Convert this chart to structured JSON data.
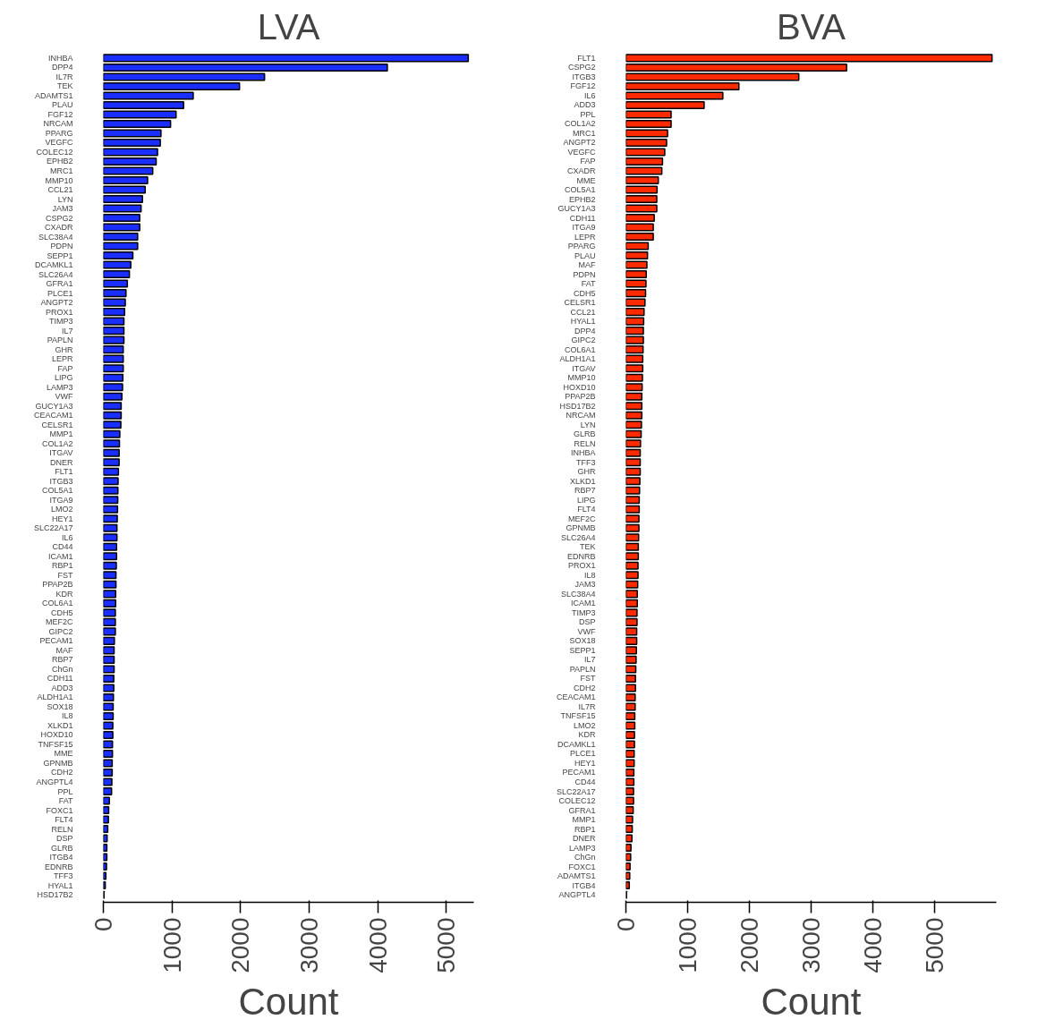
{
  "chart_data": [
    {
      "type": "bar",
      "orientation": "horizontal",
      "title": "LVA",
      "xlabel": "Count",
      "color": "#1a2eff",
      "xlim": [
        0,
        5400
      ],
      "xticks": [
        0,
        1000,
        2000,
        3000,
        4000,
        5000
      ],
      "categories": [
        "INHBA",
        "DPP4",
        "IL7R",
        "TEK",
        "ADAMTS1",
        "PLAU",
        "FGF12",
        "NRCAM",
        "PPARG",
        "VEGFC",
        "COLEC12",
        "EPHB2",
        "MRC1",
        "MMP10",
        "CCL21",
        "LYN",
        "JAM3",
        "CSPG2",
        "CXADR",
        "SLC38A4",
        "PDPN",
        "SEPP1",
        "DCAMKL1",
        "SLC26A4",
        "GFRA1",
        "PLCE1",
        "ANGPT2",
        "PROX1",
        "TIMP3",
        "IL7",
        "PAPLN",
        "GHR",
        "LEPR",
        "FAP",
        "LIPG",
        "LAMP3",
        "VWF",
        "GUCY1A3",
        "CEACAM1",
        "CELSR1",
        "MMP1",
        "COL1A2",
        "ITGAV",
        "DNER",
        "FLT1",
        "ITGB3",
        "COL5A1",
        "ITGA9",
        "LMO2",
        "HEY1",
        "SLC22A17",
        "IL6",
        "CD44",
        "ICAM1",
        "RBP1",
        "FST",
        "PPAP2B",
        "KDR",
        "COL6A1",
        "CDH5",
        "MEF2C",
        "GIPC2",
        "PECAM1",
        "MAF",
        "RBP7",
        "ChGn",
        "CDH11",
        "ADD3",
        "ALDH1A1",
        "SOX18",
        "IL8",
        "XLKD1",
        "HOXD10",
        "TNFSF15",
        "MME",
        "GPNMB",
        "CDH2",
        "ANGPTL4",
        "PPL",
        "FAT",
        "FOXC1",
        "FLT4",
        "RELN",
        "DSP",
        "GLRB",
        "ITGB4",
        "EDNRB",
        "TFF3",
        "HYAL1",
        "HSD17B2"
      ],
      "values": [
        5320,
        4140,
        2350,
        1985,
        1310,
        1170,
        1060,
        980,
        840,
        830,
        790,
        770,
        720,
        645,
        610,
        570,
        550,
        530,
        530,
        500,
        500,
        430,
        400,
        380,
        350,
        330,
        320,
        310,
        300,
        300,
        300,
        290,
        290,
        290,
        285,
        280,
        270,
        260,
        260,
        255,
        240,
        235,
        230,
        230,
        220,
        215,
        212,
        210,
        207,
        203,
        198,
        198,
        193,
        193,
        189,
        184,
        184,
        180,
        180,
        175,
        175,
        175,
        161,
        157,
        157,
        157,
        152,
        152,
        147,
        143,
        143,
        138,
        138,
        133,
        133,
        129,
        129,
        124,
        120,
        87,
        78,
        74,
        64,
        55,
        51,
        51,
        46,
        37,
        28,
        10
      ]
    },
    {
      "type": "bar",
      "orientation": "horizontal",
      "title": "BVA",
      "xlabel": "Count",
      "color": "#ff2a00",
      "xlim": [
        0,
        6000
      ],
      "xticks": [
        0,
        1000,
        2000,
        3000,
        4000,
        5000
      ],
      "categories": [
        "FLT1",
        "CSPG2",
        "ITGB3",
        "FGF12",
        "IL6",
        "ADD3",
        "PPL",
        "COL1A2",
        "MRC1",
        "ANGPT2",
        "VEGFC",
        "FAP",
        "CXADR",
        "MME",
        "COL5A1",
        "EPHB2",
        "GUCY1A3",
        "CDH11",
        "ITGA9",
        "LEPR",
        "PPARG",
        "PLAU",
        "MAF",
        "PDPN",
        "FAT",
        "CDH5",
        "CELSR1",
        "CCL21",
        "HYAL1",
        "DPP4",
        "GIPC2",
        "COL6A1",
        "ALDH1A1",
        "ITGAV",
        "MMP10",
        "HOXD10",
        "PPAP2B",
        "HSD17B2",
        "NRCAM",
        "LYN",
        "GLRB",
        "RELN",
        "INHBA",
        "TFF3",
        "GHR",
        "XLKD1",
        "RBP7",
        "LIPG",
        "FLT4",
        "MEF2C",
        "GPNMB",
        "SLC26A4",
        "TEK",
        "EDNRB",
        "PROX1",
        "IL8",
        "JAM3",
        "SLC38A4",
        "ICAM1",
        "TIMP3",
        "DSP",
        "VWF",
        "SOX18",
        "SEPP1",
        "IL7",
        "PAPLN",
        "FST",
        "CDH2",
        "CEACAM1",
        "IL7R",
        "TNFSF15",
        "LMO2",
        "KDR",
        "DCAMKL1",
        "PLCE1",
        "HEY1",
        "PECAM1",
        "CD44",
        "SLC22A17",
        "COLEC12",
        "GFRA1",
        "MMP1",
        "RBP1",
        "DNER",
        "LAMP3",
        "ChGn",
        "FOXC1",
        "ADAMTS1",
        "ITGB4",
        "ANGPTL4"
      ],
      "values": [
        5930,
        3575,
        2800,
        1830,
        1570,
        1267,
        732,
        732,
        675,
        659,
        629,
        593,
        582,
        525,
        505,
        500,
        500,
        459,
        443,
        443,
        361,
        350,
        340,
        330,
        325,
        319,
        309,
        294,
        288,
        283,
        283,
        278,
        273,
        273,
        268,
        263,
        258,
        258,
        258,
        252,
        247,
        237,
        232,
        232,
        232,
        226,
        221,
        216,
        216,
        211,
        211,
        206,
        201,
        201,
        196,
        196,
        191,
        185,
        185,
        180,
        180,
        175,
        175,
        170,
        165,
        160,
        155,
        155,
        150,
        150,
        144,
        144,
        139,
        139,
        134,
        134,
        129,
        129,
        124,
        124,
        118,
        108,
        103,
        98,
        82,
        77,
        67,
        62,
        55,
        10
      ]
    }
  ]
}
